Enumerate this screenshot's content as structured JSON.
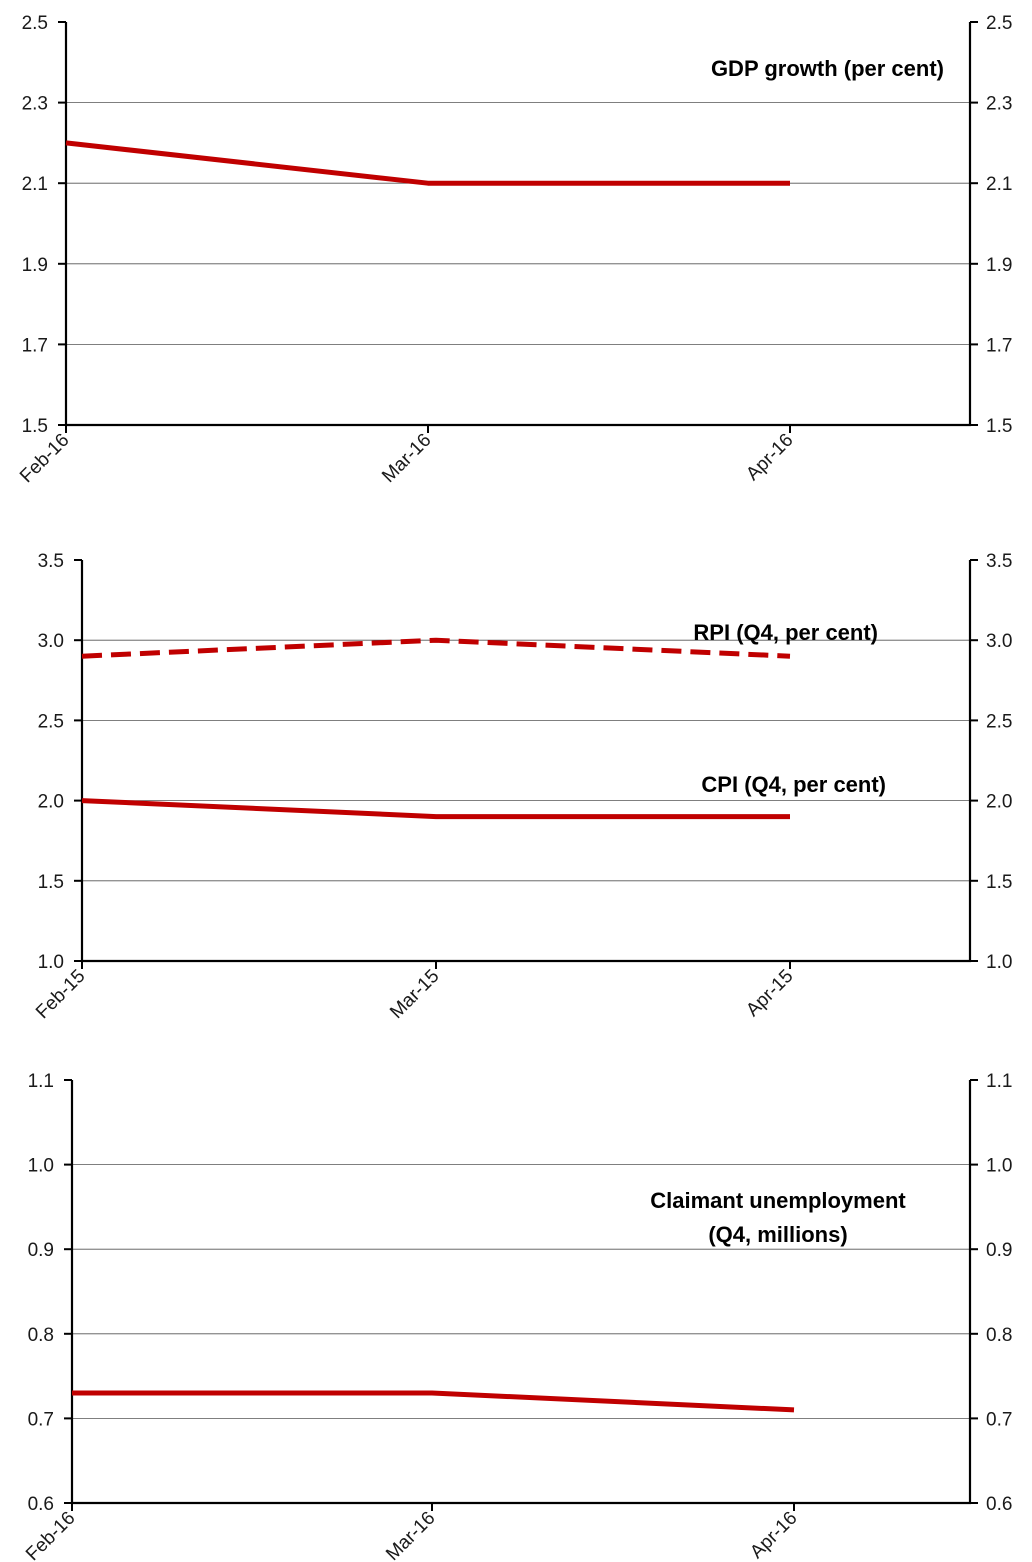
{
  "chart_data": [
    {
      "type": "line",
      "categories": [
        "Feb-16",
        "Mar-16",
        "Apr-16"
      ],
      "ylim": [
        1.5,
        2.5
      ],
      "yticks": [
        "1.5",
        "1.7",
        "1.9",
        "2.1",
        "2.3",
        "2.5"
      ],
      "grid": true,
      "series": [
        {
          "name": "GDP growth (per cent)",
          "values": [
            2.2,
            2.1,
            2.1
          ],
          "style": "solid",
          "color": "#c00000"
        }
      ],
      "annotations": [
        {
          "lines": [
            "GDP growth (per cent)"
          ]
        }
      ]
    },
    {
      "type": "line",
      "categories": [
        "Feb-15",
        "Mar-15",
        "Apr-15"
      ],
      "ylim": [
        1.0,
        3.5
      ],
      "yticks": [
        "1.0",
        "1.5",
        "2.0",
        "2.5",
        "3.0",
        "3.5"
      ],
      "grid": true,
      "series": [
        {
          "name": "RPI (Q4, per cent)",
          "values": [
            2.9,
            3.0,
            2.9
          ],
          "style": "dashed",
          "color": "#c00000"
        },
        {
          "name": "CPI (Q4, per cent)",
          "values": [
            2.0,
            1.9,
            1.9
          ],
          "style": "solid",
          "color": "#c00000"
        }
      ],
      "annotations": [
        {
          "lines": [
            "RPI (Q4, per cent)"
          ]
        },
        {
          "lines": [
            "CPI (Q4, per cent)"
          ]
        }
      ]
    },
    {
      "type": "line",
      "categories": [
        "Feb-16",
        "Mar-16",
        "Apr-16"
      ],
      "ylim": [
        0.6,
        1.1
      ],
      "yticks": [
        "0.6",
        "0.7",
        "0.8",
        "0.9",
        "1.0",
        "1.1"
      ],
      "grid": true,
      "series": [
        {
          "name": "Claimant unemployment (Q4, millions)",
          "values": [
            0.73,
            0.73,
            0.71
          ],
          "style": "solid",
          "color": "#c00000"
        }
      ],
      "annotations": [
        {
          "lines": [
            "Claimant unemployment",
            "(Q4, millions)"
          ]
        }
      ]
    }
  ]
}
